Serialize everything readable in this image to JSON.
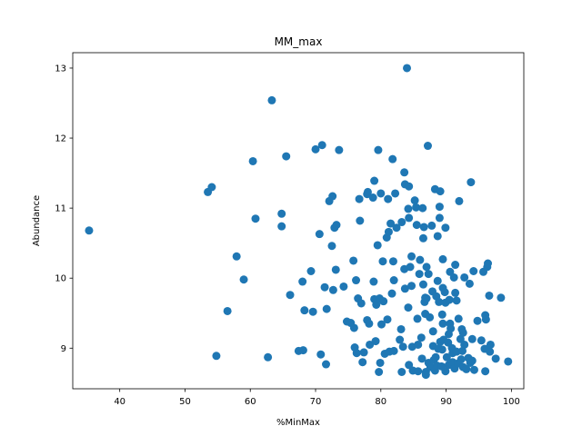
{
  "chart_data": {
    "type": "scatter",
    "title": "MM_max",
    "xlabel": "%MinMax",
    "ylabel": "Abundance",
    "xlim": [
      32.8,
      101.9
    ],
    "ylim": [
      8.42,
      13.22
    ],
    "xticks": [
      40,
      50,
      60,
      70,
      80,
      90,
      100
    ],
    "yticks": [
      9,
      10,
      11,
      12,
      13
    ],
    "grid": false,
    "marker_color": "#1f77b4",
    "points": [
      [
        35.3,
        10.68
      ],
      [
        53.5,
        11.23
      ],
      [
        54.1,
        11.3
      ],
      [
        54.8,
        8.89
      ],
      [
        56.5,
        9.53
      ],
      [
        57.9,
        10.31
      ],
      [
        59.0,
        9.98
      ],
      [
        60.4,
        11.67
      ],
      [
        60.8,
        10.85
      ],
      [
        62.7,
        8.87
      ],
      [
        63.3,
        12.54
      ],
      [
        64.8,
        10.92
      ],
      [
        64.8,
        10.74
      ],
      [
        65.5,
        11.74
      ],
      [
        66.1,
        9.76
      ],
      [
        67.4,
        8.96
      ],
      [
        68.0,
        9.95
      ],
      [
        68.1,
        8.97
      ],
      [
        68.3,
        9.54
      ],
      [
        69.3,
        10.1
      ],
      [
        69.6,
        9.52
      ],
      [
        70.0,
        11.84
      ],
      [
        70.6,
        10.63
      ],
      [
        70.8,
        8.91
      ],
      [
        71.0,
        11.9
      ],
      [
        71.4,
        9.87
      ],
      [
        71.6,
        8.77
      ],
      [
        71.7,
        9.56
      ],
      [
        72.1,
        11.1
      ],
      [
        72.5,
        10.46
      ],
      [
        72.6,
        11.17
      ],
      [
        72.7,
        9.83
      ],
      [
        72.9,
        10.72
      ],
      [
        73.1,
        10.12
      ],
      [
        73.2,
        10.76
      ],
      [
        73.6,
        11.83
      ],
      [
        74.3,
        9.88
      ],
      [
        74.8,
        9.38
      ],
      [
        75.4,
        9.36
      ],
      [
        75.8,
        10.25
      ],
      [
        75.9,
        9.29
      ],
      [
        76.0,
        9.01
      ],
      [
        76.2,
        9.97
      ],
      [
        76.3,
        8.93
      ],
      [
        76.5,
        9.71
      ],
      [
        76.7,
        11.13
      ],
      [
        76.8,
        10.82
      ],
      [
        77.0,
        9.64
      ],
      [
        77.2,
        8.8
      ],
      [
        77.4,
        8.94
      ],
      [
        77.9,
        11.2
      ],
      [
        77.9,
        9.4
      ],
      [
        78.0,
        11.23
      ],
      [
        78.2,
        9.35
      ],
      [
        78.3,
        9.05
      ],
      [
        78.8,
        11.15
      ],
      [
        78.9,
        9.95
      ],
      [
        79.0,
        11.39
      ],
      [
        79.0,
        9.7
      ],
      [
        79.2,
        9.1
      ],
      [
        79.3,
        9.62
      ],
      [
        79.5,
        10.47
      ],
      [
        79.6,
        11.83
      ],
      [
        79.7,
        8.66
      ],
      [
        79.8,
        9.71
      ],
      [
        79.9,
        8.79
      ],
      [
        80.0,
        11.21
      ],
      [
        80.1,
        9.34
      ],
      [
        80.3,
        10.24
      ],
      [
        80.4,
        9.67
      ],
      [
        80.6,
        8.92
      ],
      [
        80.9,
        10.58
      ],
      [
        81.0,
        9.41
      ],
      [
        81.1,
        11.13
      ],
      [
        81.2,
        10.66
      ],
      [
        81.3,
        8.95
      ],
      [
        81.5,
        10.78
      ],
      [
        81.7,
        9.78
      ],
      [
        81.8,
        11.7
      ],
      [
        81.9,
        10.24
      ],
      [
        82.0,
        9.97
      ],
      [
        82.0,
        8.96
      ],
      [
        82.2,
        11.21
      ],
      [
        82.4,
        10.72
      ],
      [
        82.9,
        9.12
      ],
      [
        83.1,
        9.27
      ],
      [
        83.2,
        10.8
      ],
      [
        83.2,
        8.66
      ],
      [
        83.4,
        9.02
      ],
      [
        83.6,
        11.51
      ],
      [
        83.6,
        10.13
      ],
      [
        83.7,
        9.85
      ],
      [
        83.7,
        11.34
      ],
      [
        84.0,
        13.0
      ],
      [
        84.2,
        9.58
      ],
      [
        84.2,
        10.99
      ],
      [
        84.3,
        11.31
      ],
      [
        84.3,
        10.86
      ],
      [
        84.3,
        8.76
      ],
      [
        84.5,
        10.16
      ],
      [
        84.7,
        9.89
      ],
      [
        84.7,
        10.31
      ],
      [
        84.8,
        9.02
      ],
      [
        84.9,
        8.68
      ],
      [
        85.2,
        11.11
      ],
      [
        85.4,
        11.01
      ],
      [
        85.5,
        10.76
      ],
      [
        85.6,
        9.42
      ],
      [
        85.7,
        9.05
      ],
      [
        85.7,
        8.67
      ],
      [
        85.9,
        10.06
      ],
      [
        86.0,
        10.26
      ],
      [
        86.2,
        9.15
      ],
      [
        86.3,
        8.85
      ],
      [
        86.4,
        11.0
      ],
      [
        86.5,
        10.57
      ],
      [
        86.5,
        9.91
      ],
      [
        86.6,
        10.73
      ],
      [
        86.7,
        9.66
      ],
      [
        86.8,
        9.72
      ],
      [
        86.8,
        9.49
      ],
      [
        86.9,
        8.66
      ],
      [
        86.9,
        8.62
      ],
      [
        87.0,
        10.16
      ],
      [
        87.0,
        9.71
      ],
      [
        87.2,
        11.89
      ],
      [
        87.3,
        8.79
      ],
      [
        87.3,
        10.06
      ],
      [
        87.5,
        9.44
      ],
      [
        87.6,
        8.73
      ],
      [
        87.8,
        10.75
      ],
      [
        87.9,
        9.81
      ],
      [
        88.0,
        9.03
      ],
      [
        88.0,
        9.24
      ],
      [
        88.1,
        8.83
      ],
      [
        88.3,
        8.68
      ],
      [
        88.3,
        11.27
      ],
      [
        88.4,
        8.87
      ],
      [
        88.5,
        9.74
      ],
      [
        88.6,
        8.75
      ],
      [
        88.7,
        9.96
      ],
      [
        88.7,
        10.6
      ],
      [
        88.8,
        8.99
      ],
      [
        88.9,
        9.66
      ],
      [
        89.0,
        10.86
      ],
      [
        89.0,
        11.02
      ],
      [
        89.1,
        11.24
      ],
      [
        89.1,
        9.09
      ],
      [
        89.3,
        8.74
      ],
      [
        89.4,
        8.98
      ],
      [
        89.4,
        9.48
      ],
      [
        89.5,
        9.86
      ],
      [
        89.5,
        9.35
      ],
      [
        89.5,
        10.27
      ],
      [
        89.6,
        9.12
      ],
      [
        89.8,
        9.8
      ],
      [
        89.9,
        9.65
      ],
      [
        89.9,
        8.67
      ],
      [
        89.9,
        10.72
      ],
      [
        90.1,
        8.87
      ],
      [
        90.3,
        9.08
      ],
      [
        90.4,
        9.2
      ],
      [
        90.4,
        8.76
      ],
      [
        90.5,
        9.69
      ],
      [
        90.6,
        9.35
      ],
      [
        90.6,
        10.09
      ],
      [
        90.7,
        9.28
      ],
      [
        90.9,
        9.0
      ],
      [
        91.0,
        8.8
      ],
      [
        91.0,
        8.93
      ],
      [
        91.2,
        10.01
      ],
      [
        91.3,
        8.71
      ],
      [
        91.4,
        9.79
      ],
      [
        91.4,
        10.19
      ],
      [
        91.6,
        9.68
      ],
      [
        91.6,
        8.95
      ],
      [
        91.8,
        8.78
      ],
      [
        91.9,
        9.42
      ],
      [
        92.0,
        11.1
      ],
      [
        92.2,
        9.13
      ],
      [
        92.3,
        8.84
      ],
      [
        92.4,
        9.27
      ],
      [
        92.5,
        8.96
      ],
      [
        92.6,
        8.73
      ],
      [
        92.6,
        9.22
      ],
      [
        92.8,
        10.01
      ],
      [
        92.8,
        9.05
      ],
      [
        93.1,
        8.7
      ],
      [
        93.4,
        8.86
      ],
      [
        93.6,
        9.92
      ],
      [
        93.7,
        8.79
      ],
      [
        93.8,
        11.37
      ],
      [
        94.0,
        8.82
      ],
      [
        94.0,
        9.13
      ],
      [
        94.2,
        10.1
      ],
      [
        94.3,
        8.69
      ],
      [
        94.8,
        9.39
      ],
      [
        95.4,
        9.11
      ],
      [
        95.7,
        10.09
      ],
      [
        95.9,
        8.99
      ],
      [
        96.0,
        8.67
      ],
      [
        96.0,
        9.47
      ],
      [
        96.1,
        9.41
      ],
      [
        96.3,
        10.16
      ],
      [
        96.4,
        10.21
      ],
      [
        96.6,
        9.75
      ],
      [
        96.7,
        8.95
      ],
      [
        96.8,
        9.05
      ],
      [
        97.6,
        8.85
      ],
      [
        98.4,
        9.72
      ],
      [
        99.5,
        8.81
      ]
    ]
  }
}
